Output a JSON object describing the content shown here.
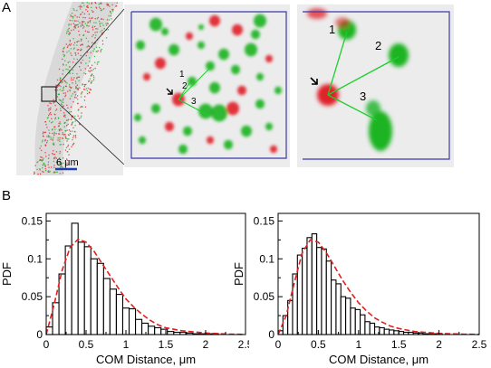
{
  "panels": {
    "a": "A",
    "b": "B"
  },
  "microscopy": {
    "scale_bar_label": "6 μm",
    "link_labels": [
      "1",
      "2",
      "3"
    ],
    "colors": {
      "bead_red": "#e0232b",
      "bead_green": "#1db424",
      "box_blue": "#3a3aa8",
      "link_green": "#19d02a",
      "scale_bar": "#1f3fb0"
    }
  },
  "chart_data": [
    {
      "type": "bar",
      "xlabel": "COM Distance, μm",
      "ylabel": "PDF",
      "xlim": [
        0,
        2.5
      ],
      "ylim": [
        0,
        0.16
      ],
      "xticks": [
        "0",
        "0.5",
        "1",
        "1.5",
        "2",
        "2.5"
      ],
      "yticks": [
        "0",
        "0.05",
        "0.1",
        "0.15"
      ],
      "bin_width": 0.08,
      "bin_starts": [
        0.0,
        0.08,
        0.16,
        0.24,
        0.32,
        0.4,
        0.48,
        0.56,
        0.64,
        0.72,
        0.8,
        0.88,
        0.96,
        1.04,
        1.12,
        1.2,
        1.28,
        1.36,
        1.44,
        1.52,
        1.6,
        1.68,
        1.76,
        1.84,
        1.92,
        2.0,
        2.08,
        2.16,
        2.24,
        2.32,
        2.4
      ],
      "values": [
        0.01,
        0.042,
        0.08,
        0.117,
        0.147,
        0.122,
        0.116,
        0.1,
        0.094,
        0.074,
        0.06,
        0.053,
        0.035,
        0.034,
        0.02,
        0.015,
        0.011,
        0.009,
        0.007,
        0.004,
        0.003,
        0.003,
        0.002,
        0.001,
        0.001,
        0.001,
        0.001,
        0.0,
        0.0,
        0.0,
        0.0
      ],
      "fit_curve": {
        "color": "#e02020",
        "x": [
          0,
          0.1,
          0.2,
          0.3,
          0.4,
          0.5,
          0.6,
          0.7,
          0.8,
          0.9,
          1.0,
          1.1,
          1.2,
          1.3,
          1.4,
          1.5,
          1.7,
          2.0,
          2.3,
          2.5
        ],
        "y": [
          0,
          0.04,
          0.085,
          0.115,
          0.126,
          0.122,
          0.11,
          0.094,
          0.078,
          0.062,
          0.047,
          0.036,
          0.027,
          0.019,
          0.013,
          0.009,
          0.005,
          0.002,
          0.0005,
          0.0002
        ]
      }
    },
    {
      "type": "bar",
      "xlabel": "COM Distance, μm",
      "ylabel": "PDF",
      "xlim": [
        0,
        2.5
      ],
      "ylim": [
        0,
        0.16
      ],
      "xticks": [
        "0",
        "0.5",
        "1",
        "1.5",
        "2",
        "2.5"
      ],
      "yticks": [
        "0",
        "0.05",
        "0.1",
        "0.15"
      ],
      "bin_width": 0.06,
      "bin_starts": [
        0.0,
        0.06,
        0.12,
        0.18,
        0.24,
        0.3,
        0.36,
        0.42,
        0.48,
        0.54,
        0.6,
        0.66,
        0.72,
        0.78,
        0.84,
        0.9,
        0.96,
        1.02,
        1.08,
        1.14,
        1.2,
        1.26,
        1.32,
        1.38,
        1.44,
        1.5,
        1.56,
        1.62,
        1.68,
        1.74,
        1.8,
        1.86,
        1.92,
        1.98
      ],
      "values": [
        0.005,
        0.025,
        0.045,
        0.08,
        0.105,
        0.114,
        0.128,
        0.133,
        0.115,
        0.113,
        0.097,
        0.072,
        0.067,
        0.05,
        0.048,
        0.035,
        0.033,
        0.026,
        0.017,
        0.015,
        0.01,
        0.009,
        0.007,
        0.006,
        0.005,
        0.004,
        0.003,
        0.003,
        0.002,
        0.002,
        0.001,
        0.001,
        0.001,
        0.001
      ],
      "fit_curve": {
        "color": "#e02020",
        "x": [
          0,
          0.1,
          0.2,
          0.3,
          0.4,
          0.5,
          0.6,
          0.7,
          0.8,
          0.9,
          1.0,
          1.1,
          1.2,
          1.3,
          1.4,
          1.5,
          1.7,
          2.0,
          2.3,
          2.5
        ],
        "y": [
          0,
          0.025,
          0.068,
          0.108,
          0.125,
          0.122,
          0.108,
          0.09,
          0.072,
          0.056,
          0.042,
          0.031,
          0.022,
          0.016,
          0.011,
          0.008,
          0.004,
          0.0015,
          0.0005,
          0.0002
        ]
      }
    }
  ]
}
